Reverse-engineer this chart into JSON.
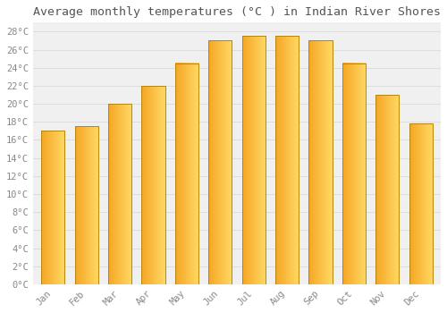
{
  "title": "Average monthly temperatures (°C ) in Indian River Shores",
  "months": [
    "Jan",
    "Feb",
    "Mar",
    "Apr",
    "May",
    "Jun",
    "Jul",
    "Aug",
    "Sep",
    "Oct",
    "Nov",
    "Dec"
  ],
  "temperatures": [
    17.0,
    17.5,
    20.0,
    22.0,
    24.5,
    27.0,
    27.5,
    27.5,
    27.0,
    24.5,
    21.0,
    17.8
  ],
  "bar_color_left": "#F5A623",
  "bar_color_right": "#FFD966",
  "bar_edge_color": "#B8860B",
  "background_color": "#FFFFFF",
  "plot_bg_color": "#F0F0F0",
  "grid_color": "#DDDDDD",
  "ylim": [
    0,
    29
  ],
  "yticks": [
    0,
    2,
    4,
    6,
    8,
    10,
    12,
    14,
    16,
    18,
    20,
    22,
    24,
    26,
    28
  ],
  "title_fontsize": 9.5,
  "tick_fontsize": 7.5,
  "title_color": "#555555",
  "tick_color": "#888888",
  "bar_width": 0.7
}
